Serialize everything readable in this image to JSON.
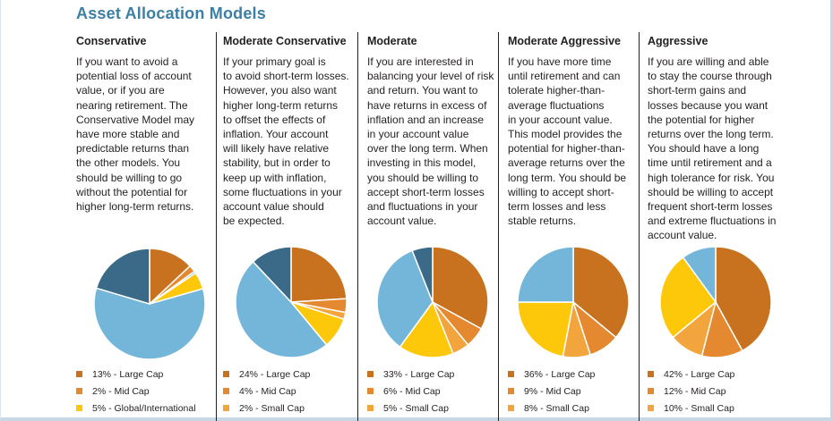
{
  "title": "Asset Allocation Models",
  "colors": {
    "large_cap": "#c8721f",
    "mid_cap": "#e4892f",
    "small_cap": "#f2a53c",
    "global": "#fdc70a",
    "bonds": "#74b6da",
    "cash": "#3a6a87"
  },
  "columns": [
    {
      "heading": "Conservative",
      "lines": [
        "If you want to avoid a",
        "potential loss of account",
        "value, or if you are",
        "nearing retirement. The",
        "Conservative Model may",
        "have more stable and",
        "predictable returns than",
        "the other models. You",
        "should be willing to go",
        "without the potential for",
        "higher long-term returns."
      ],
      "legend": [
        "13% - Large Cap",
        "2% - Mid Cap",
        "5% - Global/International"
      ]
    },
    {
      "heading": "Moderate Conservative",
      "lines": [
        "If your primary goal is",
        "to avoid short-term losses.",
        "However, you also want",
        "higher long-term returns",
        "to offset the effects of",
        "inflation. Your account",
        "will likely have relative",
        "stability, but in order to",
        "keep up with inflation,",
        "some fluctuations in your",
        "account value should",
        "be expected."
      ],
      "legend": [
        "24% - Large Cap",
        "4% - Mid Cap",
        "2% - Small Cap"
      ]
    },
    {
      "heading": "Moderate",
      "lines": [
        "If you are interested in",
        "balancing your level of risk",
        "and return. You want to",
        "have returns in excess of",
        "inflation and an increase",
        "in your account value",
        "over the long term. When",
        "investing in this model,",
        "you should be willing to",
        "accept short-term losses",
        "and fluctuations in your",
        "account value."
      ],
      "legend": [
        "33% - Large Cap",
        "6% - Mid Cap",
        "5% - Small Cap"
      ]
    },
    {
      "heading": "Moderate Aggressive",
      "lines": [
        "If you have more time",
        "until retirement and can",
        "tolerate higher-than-",
        "average fluctuations",
        "in your account value.",
        "This model provides the",
        "potential for higher-than-",
        "average returns over the",
        "long term. You should be",
        "willing to accept short-",
        "term losses and less",
        "stable returns."
      ],
      "legend": [
        "36% - Large Cap",
        "9% - Mid Cap",
        "8% - Small Cap"
      ]
    },
    {
      "heading": "Aggressive",
      "lines": [
        "If you are willing and able",
        "to stay the course through",
        "short-term gains and",
        "losses because you want",
        "the potential for higher",
        "returns over the long term.",
        "You should have a long",
        "time until retirement and a",
        "high tolerance for risk. You",
        "should be willing to accept",
        "frequent short-term losses",
        "and extreme fluctuations in",
        "account value."
      ],
      "legend": [
        "42% - Large Cap",
        "12% - Mid Cap",
        "10% - Small Cap"
      ]
    }
  ],
  "pies": [
    {
      "slices": [
        {
          "key": "large_cap",
          "value": 13
        },
        {
          "key": "mid_cap",
          "value": 2
        },
        {
          "key": "bonds",
          "value": 0.6
        },
        {
          "key": "global",
          "value": 5
        },
        {
          "key": "bonds",
          "value": 59
        },
        {
          "key": "cash",
          "value": 20.4
        }
      ]
    },
    {
      "slices": [
        {
          "key": "large_cap",
          "value": 24
        },
        {
          "key": "mid_cap",
          "value": 4
        },
        {
          "key": "small_cap",
          "value": 2
        },
        {
          "key": "global",
          "value": 9
        },
        {
          "key": "bonds",
          "value": 49
        },
        {
          "key": "cash",
          "value": 12
        }
      ]
    },
    {
      "slices": [
        {
          "key": "large_cap",
          "value": 33
        },
        {
          "key": "mid_cap",
          "value": 6
        },
        {
          "key": "small_cap",
          "value": 5
        },
        {
          "key": "global",
          "value": 16
        },
        {
          "key": "bonds",
          "value": 34
        },
        {
          "key": "cash",
          "value": 6
        }
      ]
    },
    {
      "slices": [
        {
          "key": "large_cap",
          "value": 36
        },
        {
          "key": "mid_cap",
          "value": 9
        },
        {
          "key": "small_cap",
          "value": 8
        },
        {
          "key": "global",
          "value": 22
        },
        {
          "key": "bonds",
          "value": 25
        }
      ]
    },
    {
      "slices": [
        {
          "key": "large_cap",
          "value": 42
        },
        {
          "key": "mid_cap",
          "value": 12
        },
        {
          "key": "small_cap",
          "value": 10
        },
        {
          "key": "global",
          "value": 26
        },
        {
          "key": "bonds",
          "value": 10
        }
      ]
    }
  ]
}
